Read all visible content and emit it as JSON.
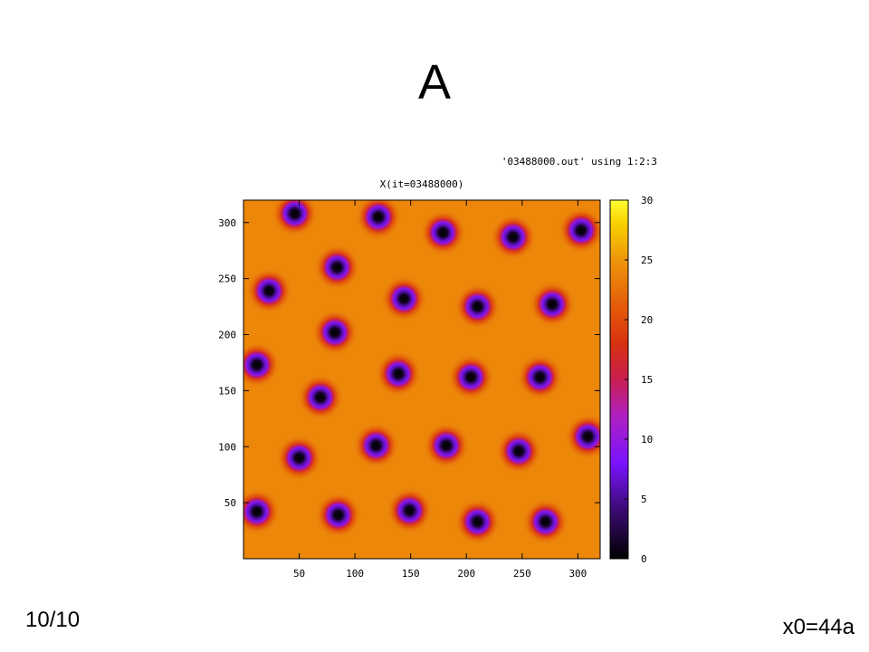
{
  "slide": {
    "title": "A",
    "page_counter": "10/10",
    "footer_note": "x0=44a"
  },
  "chart_data": {
    "type": "heatmap",
    "title": "X(it=03488000)",
    "legend_key": "'03488000.out' using 1:2:3",
    "xlim": [
      0,
      320
    ],
    "ylim": [
      0,
      320
    ],
    "x_ticks": [
      50,
      100,
      150,
      200,
      250,
      300
    ],
    "y_ticks": [
      50,
      100,
      150,
      200,
      250,
      300
    ],
    "colorbar": {
      "range": [
        0,
        30
      ],
      "ticks": [
        0,
        5,
        10,
        15,
        20,
        25,
        30
      ],
      "stops": [
        {
          "value": 0,
          "color": "#000000"
        },
        {
          "value": 4,
          "color": "#3a0a70"
        },
        {
          "value": 8,
          "color": "#7a14ff"
        },
        {
          "value": 12,
          "color": "#b020c0"
        },
        {
          "value": 15,
          "color": "#c81e50"
        },
        {
          "value": 18,
          "color": "#d83010"
        },
        {
          "value": 21,
          "color": "#e45a0a"
        },
        {
          "value": 25,
          "color": "#ee960a"
        },
        {
          "value": 28,
          "color": "#f8d000"
        },
        {
          "value": 30,
          "color": "#ffff30"
        }
      ]
    },
    "background_value": 24,
    "spots": [
      {
        "x": 46,
        "y": 308
      },
      {
        "x": 121,
        "y": 305
      },
      {
        "x": 179,
        "y": 291
      },
      {
        "x": 242,
        "y": 287
      },
      {
        "x": 303,
        "y": 293
      },
      {
        "x": 84,
        "y": 260
      },
      {
        "x": 23,
        "y": 239
      },
      {
        "x": 144,
        "y": 232
      },
      {
        "x": 210,
        "y": 225
      },
      {
        "x": 277,
        "y": 227
      },
      {
        "x": 82,
        "y": 202
      },
      {
        "x": 12,
        "y": 173
      },
      {
        "x": 139,
        "y": 165
      },
      {
        "x": 204,
        "y": 162
      },
      {
        "x": 266,
        "y": 162
      },
      {
        "x": 69,
        "y": 144
      },
      {
        "x": 119,
        "y": 101
      },
      {
        "x": 182,
        "y": 101
      },
      {
        "x": 247,
        "y": 96
      },
      {
        "x": 309,
        "y": 109
      },
      {
        "x": 50,
        "y": 90
      },
      {
        "x": 12,
        "y": 42
      },
      {
        "x": 85,
        "y": 39
      },
      {
        "x": 149,
        "y": 43
      },
      {
        "x": 210,
        "y": 33
      },
      {
        "x": 271,
        "y": 33
      }
    ]
  }
}
